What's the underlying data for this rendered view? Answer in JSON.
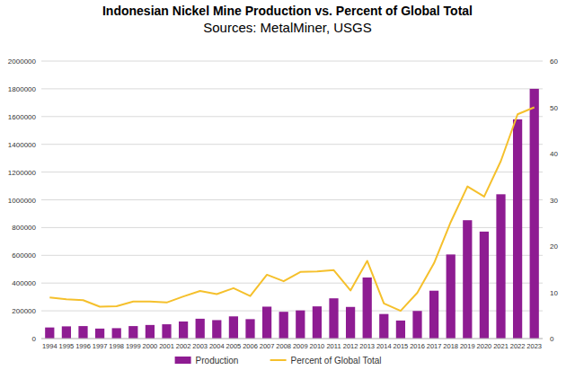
{
  "chart_data": {
    "type": "bar",
    "title": "Indonesian Nickel Mine Production vs. Percent of Global Total",
    "subtitle": "Sources: MetalMiner, USGS",
    "categories": [
      "1994",
      "1995",
      "1996",
      "1997",
      "1998",
      "1999",
      "2000",
      "2001",
      "2002",
      "2003",
      "2004",
      "2005",
      "2006",
      "2007",
      "2008",
      "2009",
      "2010",
      "2011",
      "2012",
      "2013",
      "2014",
      "2015",
      "2016",
      "2017",
      "2018",
      "2019",
      "2020",
      "2021",
      "2022",
      "2023"
    ],
    "series": [
      {
        "name": "Production",
        "type": "bar",
        "color": "#8e1c92",
        "values": [
          80000,
          88000,
          90000,
          72000,
          75000,
          90000,
          98000,
          103000,
          123000,
          143000,
          133000,
          160000,
          140000,
          230000,
          193000,
          203000,
          232000,
          290000,
          228000,
          440000,
          177000,
          130000,
          199000,
          345000,
          606000,
          853000,
          771000,
          1040000,
          1580000,
          1800000
        ]
      },
      {
        "name": "Percent of Global Total",
        "type": "line",
        "axis": "y2",
        "color": "#f5c02c",
        "values": [
          8.9,
          8.5,
          8.3,
          6.9,
          7.0,
          8.0,
          8.0,
          7.8,
          9.1,
          10.3,
          9.6,
          10.9,
          9.2,
          13.8,
          12.4,
          14.4,
          14.5,
          14.8,
          10.4,
          16.8,
          7.6,
          6.0,
          9.9,
          16.3,
          25.2,
          32.9,
          30.7,
          38.4,
          48.5,
          50.0
        ]
      }
    ],
    "ylim": [
      0,
      2000000
    ],
    "yticks": [
      0,
      200000,
      400000,
      600000,
      800000,
      1000000,
      1200000,
      1400000,
      1600000,
      1800000,
      2000000
    ],
    "y2lim": [
      0,
      60
    ],
    "y2ticks": [
      0,
      10,
      20,
      30,
      40,
      50,
      60
    ],
    "grid": true,
    "legend": "bottom"
  }
}
